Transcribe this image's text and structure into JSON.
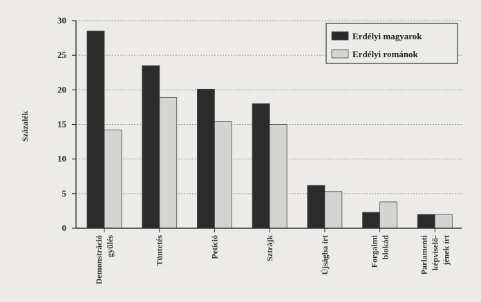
{
  "chart_data": {
    "type": "bar",
    "ylabel": "Százalék",
    "ylim": [
      0,
      30
    ],
    "yticks": [
      0,
      5,
      10,
      15,
      20,
      25,
      30
    ],
    "grid": true,
    "legend_position": "top-right",
    "categories": [
      [
        "Demonstráció",
        "gyűlés"
      ],
      [
        "Tüntetés"
      ],
      [
        "Petíció"
      ],
      [
        "Sztrájk"
      ],
      [
        "Újságba írt"
      ],
      [
        "Forgalmi",
        "blokád"
      ],
      [
        "Parlamenti",
        "képviselő-",
        "jének írt"
      ]
    ],
    "series": [
      {
        "name": "Erdélyi magyarok",
        "color": "#2b2b2b",
        "values": [
          28.5,
          23.5,
          20.1,
          18.0,
          6.2,
          2.3,
          2.0
        ]
      },
      {
        "name": "Erdélyi románok",
        "color": "#d4d4d2",
        "values": [
          14.2,
          18.9,
          15.4,
          15.0,
          5.3,
          3.8,
          2.0
        ]
      }
    ]
  }
}
